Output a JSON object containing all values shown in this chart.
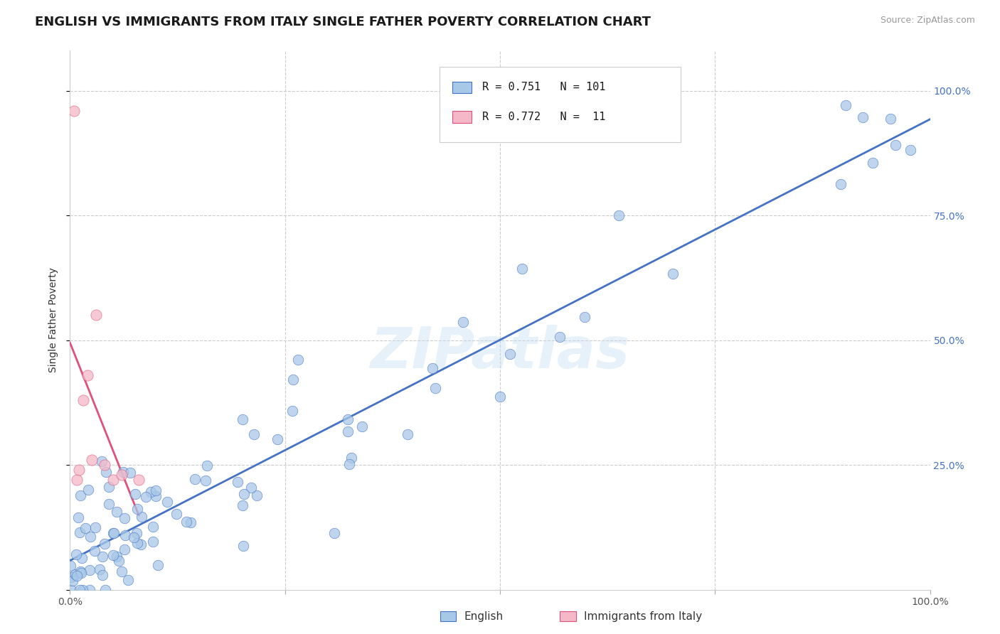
{
  "title": "ENGLISH VS IMMIGRANTS FROM ITALY SINGLE FATHER POVERTY CORRELATION CHART",
  "source": "Source: ZipAtlas.com",
  "ylabel": "Single Father Poverty",
  "R_english": 0.751,
  "N_english": 101,
  "R_italy": 0.772,
  "N_italy": 11,
  "color_english": "#a8c8e8",
  "color_italy": "#f4b8c8",
  "line_color_english": "#4472c4",
  "line_color_italy": "#e0507a",
  "watermark": "ZIPatlas",
  "bg_color": "#ffffff",
  "grid_color": "#cccccc",
  "tick_color_right": "#4472c4",
  "title_fontsize": 13,
  "axis_fontsize": 10,
  "legend_fontsize": 11
}
